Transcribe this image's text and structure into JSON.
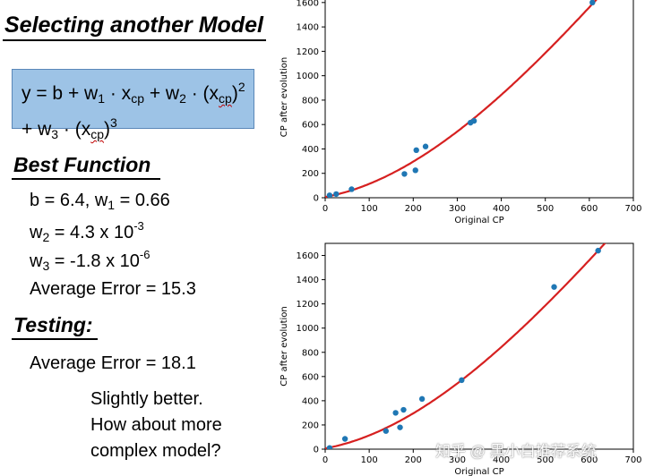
{
  "title": "Selecting another Model",
  "formula": {
    "y": "y = b + w",
    "w1_sub": "1",
    "x1": " · x",
    "cp1": "cp",
    "plus_w2": " + w",
    "w2_sub": "2",
    "x2": " · (x",
    "cp2": "cp",
    "close2": ")",
    "pow2": "2",
    "plus_w3": "+ w",
    "w3_sub": "3",
    "x3": " · (x",
    "cp3": "cp",
    "close3": ")",
    "pow3": "3"
  },
  "best_function": {
    "heading": "Best Function",
    "b_w1": "b = 6.4, w",
    "w1_sub": "1",
    "w1_val": " = 0.66",
    "w2_prefix": "w",
    "w2_sub": "2",
    "w2_val": " = 4.3 x 10",
    "w2_exp": "-3",
    "w3_prefix": "w",
    "w3_sub": "3",
    "w3_val": " = -1.8 x 10",
    "w3_exp": "-6",
    "avg_error": "Average Error = 15.3"
  },
  "testing": {
    "heading": "Testing:",
    "avg_error": "Average Error = 18.1",
    "note_1": "Slightly better.",
    "note_2": "How about more",
    "note_3": "complex model?"
  },
  "watermark": "知乎 @ 黑小白推荐系统",
  "chart_data": [
    {
      "type": "scatter",
      "xlabel": "Original CP",
      "ylabel": "CP after evolution",
      "xlim": [
        0,
        700
      ],
      "ylim": [
        0,
        1650
      ],
      "xticks": [
        "0",
        "100",
        "200",
        "300",
        "400",
        "500",
        "600",
        "700"
      ],
      "yticks": [
        "0",
        "200",
        "400",
        "600",
        "800",
        "1000",
        "1200",
        "1400",
        "1600"
      ],
      "points": [
        [
          10,
          20
        ],
        [
          25,
          30
        ],
        [
          60,
          70
        ],
        [
          180,
          195
        ],
        [
          205,
          225
        ],
        [
          207,
          390
        ],
        [
          228,
          420
        ],
        [
          330,
          615
        ],
        [
          338,
          630
        ],
        [
          607,
          1600
        ]
      ],
      "fit_curve": {
        "b": 6.4,
        "w1": 0.66,
        "w2": 0.0043,
        "w3": -1.8e-06
      },
      "point_color": "#1f77b4",
      "curve_color": "#d62020"
    },
    {
      "type": "scatter",
      "xlabel": "Original CP",
      "ylabel": "CP after evolution",
      "xlim": [
        0,
        700
      ],
      "ylim": [
        0,
        1700
      ],
      "xticks": [
        "0",
        "100",
        "200",
        "300",
        "400",
        "500",
        "600",
        "700"
      ],
      "yticks": [
        "0",
        "200",
        "400",
        "600",
        "800",
        "1000",
        "1200",
        "1400",
        "1600"
      ],
      "points": [
        [
          10,
          10
        ],
        [
          45,
          85
        ],
        [
          138,
          150
        ],
        [
          160,
          300
        ],
        [
          170,
          180
        ],
        [
          178,
          325
        ],
        [
          220,
          415
        ],
        [
          310,
          570
        ],
        [
          520,
          1340
        ],
        [
          620,
          1640
        ]
      ],
      "fit_curve": {
        "b": 6.4,
        "w1": 0.66,
        "w2": 0.0043,
        "w3": -1.8e-06
      },
      "point_color": "#1f77b4",
      "curve_color": "#d62020"
    }
  ]
}
